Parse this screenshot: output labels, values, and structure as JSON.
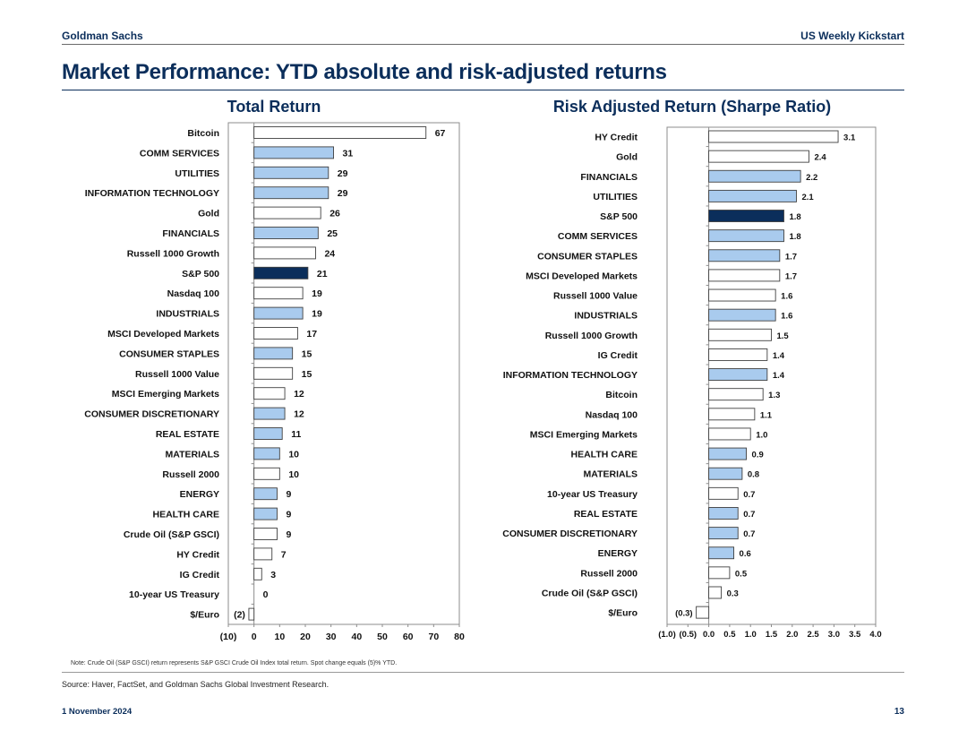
{
  "header": {
    "brand": "Goldman Sachs",
    "report": "US Weekly Kickstart",
    "title": "Market Performance: YTD absolute and risk-adjusted returns"
  },
  "footer": {
    "note": "Note: Crude Oil (S&P GSCI) return represents S&P GSCI Crude Oil Index total return. Spot change equals (5)% YTD.",
    "source": "Source: Haver, FactSet, and Goldman Sachs Global Investment Research.",
    "date": "1 November 2024",
    "page_number": "13"
  },
  "colors": {
    "brand_navy": "#0b2e5b",
    "sector_fill": "#a9cbee",
    "other_fill": "#ffffff",
    "highlight_fill": "#0b2e5b",
    "bar_stroke": "#404040"
  },
  "chart_data": [
    {
      "type": "bar",
      "orientation": "horizontal",
      "title": "Total Return",
      "xlim": [
        -10,
        80
      ],
      "ticks": [
        -10,
        0,
        10,
        20,
        30,
        40,
        50,
        60,
        70,
        80
      ],
      "tick_labels": [
        "(10)",
        "0",
        "10",
        "20",
        "30",
        "40",
        "50",
        "60",
        "70",
        "80"
      ],
      "categories": [
        "Bitcoin",
        "COMM SERVICES",
        "UTILITIES",
        "INFORMATION TECHNOLOGY",
        "Gold",
        "FINANCIALS",
        "Russell 1000 Growth",
        "S&P 500",
        "Nasdaq 100",
        "INDUSTRIALS",
        "MSCI Developed Markets",
        "CONSUMER STAPLES",
        "Russell 1000 Value",
        "MSCI Emerging Markets",
        "CONSUMER DISCRETIONARY",
        "REAL ESTATE",
        "MATERIALS",
        "Russell 2000",
        "ENERGY",
        "HEALTH CARE",
        "Crude Oil (S&P GSCI)",
        "HY Credit",
        "IG Credit",
        "10-year US Treasury",
        "$/Euro"
      ],
      "values": [
        67,
        31,
        29,
        29,
        26,
        25,
        24,
        21,
        19,
        19,
        17,
        15,
        15,
        12,
        12,
        11,
        10,
        10,
        9,
        9,
        9,
        7,
        3,
        0,
        -2
      ],
      "value_labels": [
        "67",
        "31",
        "29",
        "29",
        "26",
        "25",
        "24",
        "21",
        "19",
        "19",
        "17",
        "15",
        "15",
        "12",
        "12",
        "11",
        "10",
        "10",
        "9",
        "9",
        "9",
        "7",
        "3",
        "0",
        "(2)"
      ],
      "bar_style": [
        "other",
        "sector",
        "sector",
        "sector",
        "other",
        "sector",
        "other",
        "highlight",
        "other",
        "sector",
        "other",
        "sector",
        "other",
        "other",
        "sector",
        "sector",
        "sector",
        "other",
        "sector",
        "sector",
        "other",
        "other",
        "other",
        "other",
        "other"
      ]
    },
    {
      "type": "bar",
      "orientation": "horizontal",
      "title": "Risk Adjusted Return (Sharpe Ratio)",
      "xlim": [
        -1.0,
        4.0
      ],
      "ticks": [
        -1.0,
        -0.5,
        0.0,
        0.5,
        1.0,
        1.5,
        2.0,
        2.5,
        3.0,
        3.5,
        4.0
      ],
      "tick_labels": [
        "(1.0)",
        "(0.5)",
        "0.0",
        "0.5",
        "1.0",
        "1.5",
        "2.0",
        "2.5",
        "3.0",
        "3.5",
        "4.0"
      ],
      "categories": [
        "HY Credit",
        "Gold",
        "FINANCIALS",
        "UTILITIES",
        "S&P 500",
        "COMM SERVICES",
        "CONSUMER STAPLES",
        "MSCI Developed Markets",
        "Russell 1000 Value",
        "INDUSTRIALS",
        "Russell 1000 Growth",
        "IG Credit",
        "INFORMATION TECHNOLOGY",
        "Bitcoin",
        "Nasdaq 100",
        "MSCI Emerging Markets",
        "HEALTH CARE",
        "MATERIALS",
        "10-year US Treasury",
        "REAL ESTATE",
        "CONSUMER DISCRETIONARY",
        "ENERGY",
        "Russell 2000",
        "Crude Oil (S&P GSCI)",
        "$/Euro"
      ],
      "values": [
        3.1,
        2.4,
        2.2,
        2.1,
        1.8,
        1.8,
        1.7,
        1.7,
        1.6,
        1.6,
        1.5,
        1.4,
        1.4,
        1.3,
        1.1,
        1.0,
        0.9,
        0.8,
        0.7,
        0.7,
        0.7,
        0.6,
        0.5,
        0.3,
        -0.3
      ],
      "value_labels": [
        "3.1",
        "2.4",
        "2.2",
        "2.1",
        "1.8",
        "1.8",
        "1.7",
        "1.7",
        "1.6",
        "1.6",
        "1.5",
        "1.4",
        "1.4",
        "1.3",
        "1.1",
        "1.0",
        "0.9",
        "0.8",
        "0.7",
        "0.7",
        "0.7",
        "0.6",
        "0.5",
        "0.3",
        "(0.3)"
      ],
      "bar_style": [
        "other",
        "other",
        "sector",
        "sector",
        "highlight",
        "sector",
        "sector",
        "other",
        "other",
        "sector",
        "other",
        "other",
        "sector",
        "other",
        "other",
        "other",
        "sector",
        "sector",
        "other",
        "sector",
        "sector",
        "sector",
        "other",
        "other",
        "other"
      ]
    }
  ]
}
